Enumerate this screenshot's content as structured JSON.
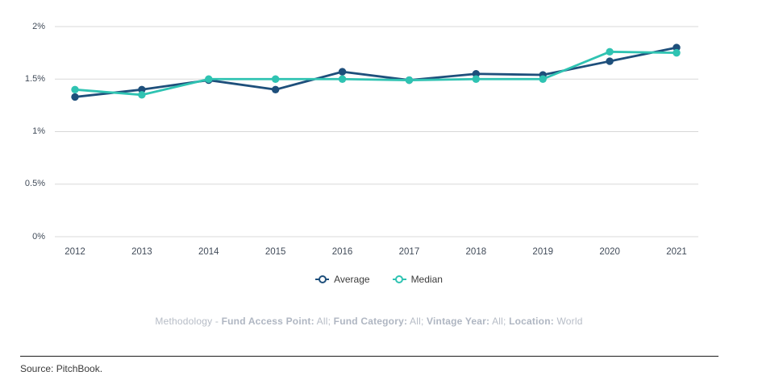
{
  "chart_data": {
    "type": "line",
    "title": "",
    "xlabel": "",
    "ylabel": "",
    "categories": [
      "2012",
      "2013",
      "2014",
      "2015",
      "2016",
      "2017",
      "2018",
      "2019",
      "2020",
      "2021"
    ],
    "series": [
      {
        "name": "Average",
        "color": "#1e4f7b",
        "values": [
          1.33,
          1.4,
          1.49,
          1.4,
          1.57,
          1.49,
          1.55,
          1.54,
          1.67,
          1.8
        ]
      },
      {
        "name": "Median",
        "color": "#2fc3b2",
        "values": [
          1.4,
          1.35,
          1.5,
          1.5,
          1.5,
          1.49,
          1.5,
          1.5,
          1.76,
          1.75
        ]
      }
    ],
    "ylim": [
      0,
      2
    ],
    "y_ticks": [
      {
        "value": 0,
        "label": "0%"
      },
      {
        "value": 0.5,
        "label": "0.5%"
      },
      {
        "value": 1,
        "label": "1%"
      },
      {
        "value": 1.5,
        "label": "1.5%"
      },
      {
        "value": 2,
        "label": "2%"
      }
    ],
    "grid": true,
    "legend_position": "bottom"
  },
  "legend": {
    "items": [
      {
        "label": "Average",
        "color": "#1e4f7b"
      },
      {
        "label": "Median",
        "color": "#2fc3b2"
      }
    ]
  },
  "methodology": {
    "segments": [
      {
        "text": "Methodology - ",
        "bold": false
      },
      {
        "text": "Fund Access Point:",
        "bold": true
      },
      {
        "text": " All; ",
        "bold": false
      },
      {
        "text": "Fund Category:",
        "bold": true
      },
      {
        "text": " All; ",
        "bold": false
      },
      {
        "text": "Vintage Year:",
        "bold": true
      },
      {
        "text": " All; ",
        "bold": false
      },
      {
        "text": "Location:",
        "bold": true
      },
      {
        "text": " World",
        "bold": false
      }
    ]
  },
  "source": {
    "text": "Source: PitchBook."
  },
  "colors": {
    "gridline": "#d8d8d8",
    "axis_label": "#414b59",
    "methodology_text": "#b6bcc6",
    "source_text": "#3a3a3a",
    "divider": "#1c1c1c"
  }
}
